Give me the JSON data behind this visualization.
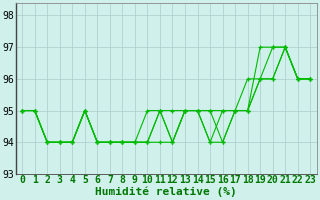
{
  "xlabel": "Humidité relative (%)",
  "background_color": "#cff0eb",
  "grid_color": "#aacccc",
  "line_color": "#00bb00",
  "x_data": [
    0,
    1,
    2,
    3,
    4,
    5,
    6,
    7,
    8,
    9,
    10,
    11,
    12,
    13,
    14,
    15,
    16,
    17,
    18,
    19,
    20,
    21,
    22,
    23
  ],
  "series": [
    [
      95,
      95,
      94,
      94,
      94,
      95,
      94,
      94,
      94,
      94,
      95,
      95,
      95,
      95,
      95,
      95,
      95,
      95,
      95,
      97,
      97,
      97,
      96,
      96
    ],
    [
      95,
      95,
      94,
      94,
      94,
      95,
      94,
      94,
      94,
      94,
      94,
      95,
      94,
      95,
      95,
      94,
      95,
      95,
      95,
      96,
      96,
      97,
      96,
      96
    ],
    [
      95,
      95,
      94,
      94,
      94,
      95,
      94,
      94,
      94,
      94,
      94,
      95,
      94,
      95,
      95,
      95,
      94,
      95,
      95,
      96,
      97,
      97,
      96,
      96
    ],
    [
      95,
      95,
      94,
      94,
      94,
      95,
      94,
      94,
      94,
      94,
      94,
      94,
      94,
      95,
      95,
      94,
      94,
      95,
      96,
      96,
      96,
      97,
      96,
      96
    ]
  ],
  "ylim": [
    93,
    98.4
  ],
  "yticks": [
    93,
    94,
    95,
    96,
    97,
    98
  ],
  "xlim": [
    -0.5,
    23.5
  ],
  "xlabel_fontsize": 8,
  "tick_fontsize": 7,
  "linewidth": 0.8,
  "markersize": 3.5,
  "markeredgewidth": 0.9
}
